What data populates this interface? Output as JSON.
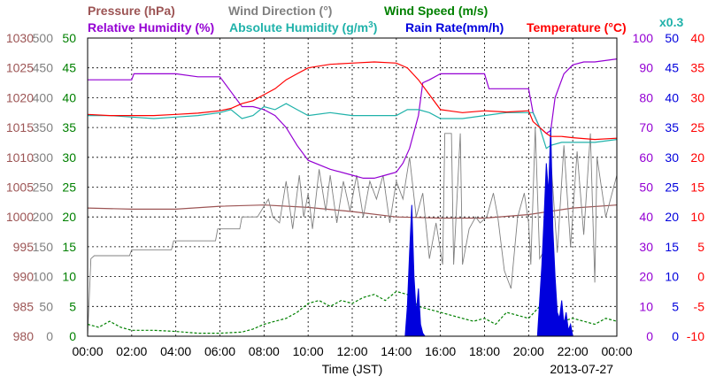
{
  "chart_data": {
    "type": "line",
    "date": "2013-07-27",
    "xlabel": "Time (JST)",
    "x_ticks": [
      "00:00",
      "02:00",
      "04:00",
      "06:00",
      "08:00",
      "10:00",
      "12:00",
      "14:00",
      "16:00",
      "18:00",
      "20:00",
      "22:00",
      "00:00"
    ],
    "x_range_hours": [
      0,
      24
    ],
    "grid": true,
    "legend": [
      {
        "id": "pressure",
        "label": "Pressure (hPa)",
        "color": "#9c5454"
      },
      {
        "id": "wind_dir",
        "label": "Wind Direction (°)",
        "color": "#808080"
      },
      {
        "id": "wind_speed",
        "label": "Wind Speed (m/s)",
        "color": "#008000"
      },
      {
        "id": "rh",
        "label": "Relative Humidity (%)",
        "color": "#9400d3"
      },
      {
        "id": "ah",
        "label": "Absolute Humidity (g/m",
        "sup": "3",
        "label_end": ")",
        "color": "#20b2aa"
      },
      {
        "id": "rain",
        "label": "Rain Rate(mm/h)",
        "color": "#0000dd"
      },
      {
        "id": "temp",
        "label": "Temperature (°C)",
        "color": "#ff0000"
      },
      {
        "id": "ah_scale",
        "label": "x0.3",
        "color": "#20b2aa"
      }
    ],
    "axes": {
      "pressure": {
        "min": 980,
        "max": 1030,
        "ticks": [
          "980",
          "985",
          "990",
          "995",
          "1000",
          "1005",
          "1010",
          "1015",
          "1020",
          "1025",
          "1030"
        ],
        "color": "#9c5454"
      },
      "wind_dir": {
        "min": 0,
        "max": 500,
        "ticks": [
          "0",
          "50",
          "100",
          "150",
          "200",
          "250",
          "300",
          "350",
          "400",
          "450",
          "500"
        ],
        "color": "#808080"
      },
      "wind_speed": {
        "min": 0,
        "max": 50,
        "ticks": [
          "0",
          "5",
          "10",
          "15",
          "20",
          "25",
          "30",
          "35",
          "40",
          "45",
          "50"
        ],
        "color": "#008000"
      },
      "rh": {
        "min": 0,
        "max": 100,
        "ticks": [
          "0",
          "10",
          "20",
          "30",
          "40",
          "50",
          "60",
          "70",
          "80",
          "90",
          "100"
        ],
        "color": "#9400d3"
      },
      "rain": {
        "min": 0,
        "max": 50,
        "ticks": [
          "0",
          "5",
          "10",
          "15",
          "20",
          "25",
          "30",
          "35",
          "40",
          "45",
          "50"
        ],
        "color": "#0000dd"
      },
      "temp": {
        "min": -10,
        "max": 40,
        "ticks": [
          "-10",
          "-5",
          "0",
          "5",
          "10",
          "15",
          "20",
          "25",
          "30",
          "35",
          "40"
        ],
        "color": "#ff0000"
      }
    },
    "series": [
      {
        "name": "Pressure (hPa)",
        "id": "pressure",
        "axis": "pressure",
        "x": [
          0,
          2,
          4,
          6,
          8,
          10,
          12,
          14,
          16,
          18,
          20,
          22,
          24
        ],
        "y": [
          1001.5,
          1001.3,
          1001.3,
          1001.8,
          1002.0,
          1001.6,
          1000.9,
          1000.0,
          999.8,
          999.8,
          1000.4,
          1001.5,
          1002.0
        ]
      },
      {
        "name": "Wind Direction (°)",
        "id": "wind_dir",
        "axis": "wind_dir",
        "x": [
          0,
          0.15,
          0.3,
          1.9,
          2.0,
          3.8,
          3.9,
          5.8,
          5.9,
          6.9,
          7.0,
          7.6,
          7.7,
          8.2,
          8.4,
          8.7,
          9.0,
          9.3,
          9.6,
          9.8,
          10.0,
          10.2,
          10.5,
          10.8,
          11.0,
          11.3,
          11.6,
          11.9,
          12.2,
          12.5,
          12.8,
          13.1,
          13.4,
          13.7,
          14.0,
          14.3,
          14.6,
          14.9,
          15.2,
          15.5,
          15.8,
          16.1,
          16.2,
          16.5,
          16.6,
          16.9,
          17.0,
          17.3,
          17.6,
          17.8,
          18.1,
          18.4,
          18.6,
          18.9,
          19.2,
          19.5,
          19.8,
          20.0,
          20.1,
          20.3,
          20.5,
          20.8,
          21.0,
          21.3,
          21.6,
          21.9,
          22.2,
          22.5,
          22.8,
          23.0,
          23.1,
          23.5,
          24
        ],
        "y": [
          0,
          130,
          135,
          135,
          145,
          145,
          160,
          160,
          180,
          180,
          200,
          200,
          200,
          230,
          200,
          190,
          260,
          180,
          270,
          200,
          240,
          180,
          280,
          210,
          270,
          190,
          260,
          210,
          270,
          200,
          260,
          230,
          270,
          190,
          260,
          230,
          300,
          200,
          240,
          130,
          190,
          120,
          340,
          340,
          120,
          340,
          120,
          180,
          200,
          190,
          200,
          240,
          200,
          110,
          80,
          200,
          240,
          190,
          120,
          350,
          130,
          150,
          300,
          140,
          320,
          150,
          310,
          170,
          340,
          90,
          300,
          200,
          270
        ]
      },
      {
        "name": "Wind Speed (m/s)",
        "id": "wind_speed",
        "axis": "wind_speed",
        "x": [
          0,
          0.5,
          1,
          1.5,
          2,
          3,
          4,
          5,
          6,
          7,
          7.5,
          8,
          8.5,
          9,
          9.5,
          10,
          10.5,
          11,
          11.5,
          12,
          12.5,
          13,
          13.5,
          14,
          14.5,
          15,
          15.5,
          16,
          16.5,
          17,
          17.5,
          18,
          18.5,
          19,
          19.5,
          20,
          20.5,
          21,
          21.5,
          22,
          22.5,
          23,
          23.5,
          24
        ],
        "y": [
          2,
          1.5,
          2.5,
          1.5,
          1,
          1,
          0.8,
          0.5,
          0.5,
          0.7,
          1.2,
          2,
          2.5,
          3,
          4,
          5.5,
          6,
          5,
          6,
          5.5,
          6.5,
          7,
          6,
          7.5,
          7,
          5,
          4.5,
          4,
          3.5,
          3,
          2.5,
          3,
          2,
          4,
          3.5,
          3,
          5,
          4,
          2.5,
          3,
          2.5,
          2,
          3,
          2.5
        ]
      },
      {
        "name": "Relative Humidity (%)",
        "id": "rh",
        "axis": "rh",
        "x": [
          0,
          1,
          2,
          2.1,
          4,
          5,
          6,
          6.5,
          7,
          7.5,
          8,
          8.5,
          9,
          9.5,
          10,
          11,
          12,
          12.5,
          13,
          13.5,
          14,
          14.3,
          14.6,
          15,
          15.2,
          15.5,
          16,
          17,
          18,
          18.2,
          20,
          20.2,
          20.5,
          20.8,
          21,
          21.2,
          21.6,
          22,
          22.5,
          23,
          24
        ],
        "y": [
          86,
          86,
          86,
          88,
          88,
          87,
          87,
          82,
          77,
          77,
          76,
          74,
          70,
          64,
          59,
          56,
          54,
          53,
          53,
          54,
          55,
          58,
          63,
          74,
          85,
          86,
          88,
          88,
          88,
          83,
          83,
          75,
          70,
          68,
          69,
          80,
          88,
          91,
          92,
          92,
          93
        ]
      },
      {
        "name": "Absolute Humidity (g/m³)",
        "id": "ah",
        "axis": "rh",
        "x": [
          0,
          1,
          2,
          3,
          4,
          5,
          6,
          6.5,
          7,
          7.5,
          8,
          8.5,
          9,
          9.5,
          10,
          11,
          12,
          13,
          14,
          14.5,
          15,
          15.5,
          16,
          17,
          18,
          19,
          20,
          20.2,
          20.5,
          20.8,
          21,
          21.5,
          22,
          23,
          24
        ],
        "y": [
          74,
          74,
          73.5,
          73,
          73.5,
          74,
          75,
          76,
          73,
          74,
          77,
          76,
          78,
          76,
          74,
          75,
          74,
          74,
          74,
          76,
          76,
          75,
          73,
          73,
          74,
          75,
          75,
          75,
          70,
          63,
          64,
          65,
          65,
          65,
          66
        ]
      },
      {
        "name": "Rain Rate(mm/h)",
        "id": "rain",
        "axis": "rain",
        "x": [
          0,
          14.4,
          14.5,
          14.6,
          14.7,
          14.8,
          14.9,
          15.0,
          15.1,
          15.2,
          15.3,
          15.4,
          20.0,
          20.4,
          20.5,
          20.6,
          20.7,
          20.8,
          20.9,
          21.0,
          21.1,
          21.2,
          21.3,
          21.4,
          21.5,
          21.6,
          21.7,
          21.8,
          21.9,
          22.0,
          24
        ],
        "y": [
          0,
          0,
          5,
          14,
          22,
          10,
          4,
          8,
          2,
          0.5,
          0,
          0,
          0,
          0,
          6,
          12,
          20,
          29,
          24,
          35,
          18,
          10,
          4,
          3,
          6,
          2,
          4,
          1,
          2,
          0,
          0
        ]
      },
      {
        "name": "Temperature (°C)",
        "id": "temp",
        "axis": "temp",
        "x": [
          0,
          1,
          2,
          3,
          4,
          5,
          6,
          6.5,
          7,
          7.5,
          8,
          8.5,
          9,
          9.5,
          10,
          11,
          12,
          13,
          14,
          14.5,
          15,
          15.5,
          16,
          17,
          18,
          19,
          20,
          20.2,
          20.5,
          20.8,
          21,
          21.5,
          22,
          23,
          24
        ],
        "y": [
          27.2,
          27,
          27,
          27,
          27.2,
          27.4,
          27.8,
          28.2,
          29,
          29.5,
          30.5,
          31.5,
          33,
          34,
          35,
          35.6,
          35.8,
          36,
          35.8,
          35,
          33,
          30.5,
          28,
          27.5,
          27.8,
          27.6,
          27.8,
          26,
          25,
          24,
          23.5,
          23.5,
          23.3,
          23,
          23.2
        ]
      }
    ]
  }
}
